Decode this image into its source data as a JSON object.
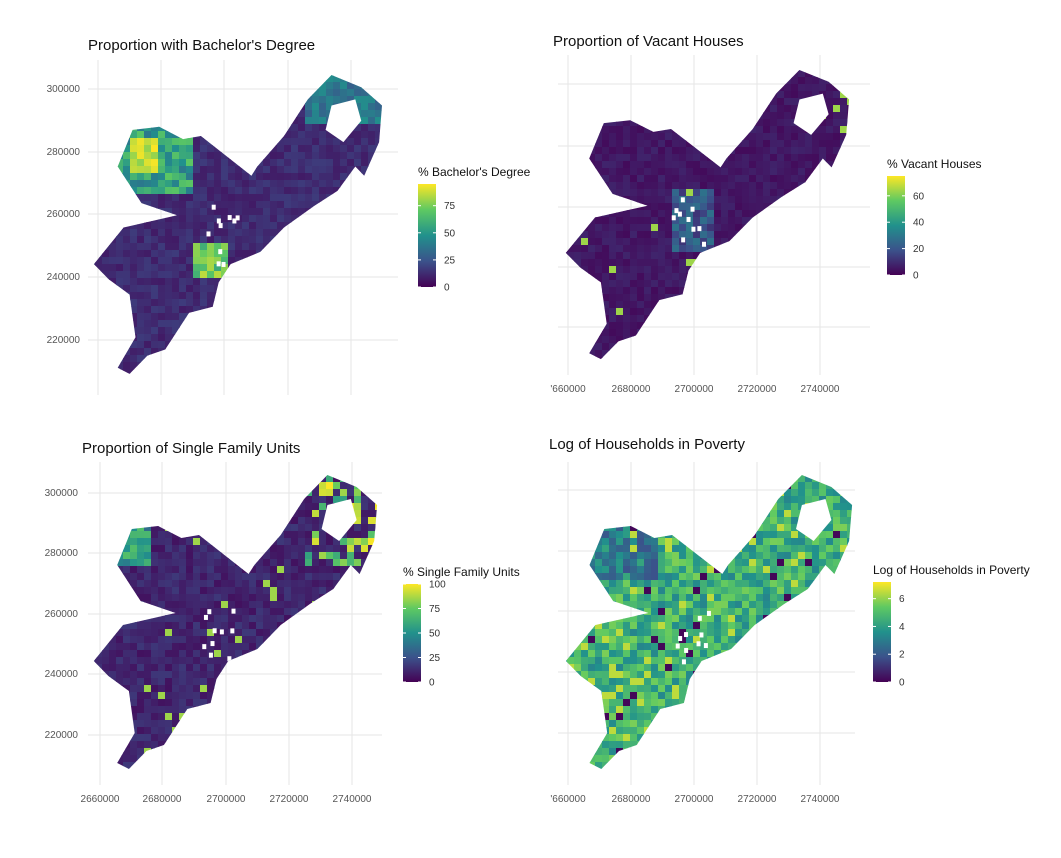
{
  "colors": {
    "viridis": [
      "#440154",
      "#3b528b",
      "#21918c",
      "#5ec962",
      "#fde725"
    ],
    "background": "#ffffff",
    "grid": "#e6e6e6"
  },
  "x_tick_labels": [
    "2660000",
    "2680000",
    "2700000",
    "2720000",
    "2740000"
  ],
  "x_tick_labels_clipped": [
    "'660000",
    "2680000",
    "2700000",
    "2720000",
    "2740000"
  ],
  "y_tick_labels": [
    "300000",
    "280000",
    "260000",
    "240000",
    "220000"
  ],
  "panels": [
    {
      "title": "Proportion with Bachelor's Degree",
      "legend_title": "% Bachelor's Degree",
      "legend_ticks": [
        "75",
        "50",
        "25",
        "0"
      ],
      "legend_max": 95,
      "show_x_ticks": false,
      "show_y_ticks": true,
      "pattern": "bachelor"
    },
    {
      "title": "Proportion of Vacant Houses",
      "legend_title": "% Vacant Houses",
      "legend_ticks": [
        "60",
        "40",
        "20",
        "0"
      ],
      "legend_max": 75,
      "show_x_ticks": true,
      "show_y_ticks": false,
      "pattern": "vacant"
    },
    {
      "title": "Proportion of Single Family Units",
      "legend_title": "% Single Family Units",
      "legend_ticks": [
        "100",
        "75",
        "50",
        "25",
        "0"
      ],
      "legend_max": 100,
      "show_x_ticks": true,
      "show_y_ticks": true,
      "pattern": "single"
    },
    {
      "title": "Log of Households in Poverty",
      "legend_title": "Log of Households in Poverty",
      "legend_ticks": [
        "6",
        "4",
        "2",
        "0"
      ],
      "legend_max": 7.2,
      "show_x_ticks": true,
      "show_y_ticks": false,
      "pattern": "poverty"
    }
  ]
}
